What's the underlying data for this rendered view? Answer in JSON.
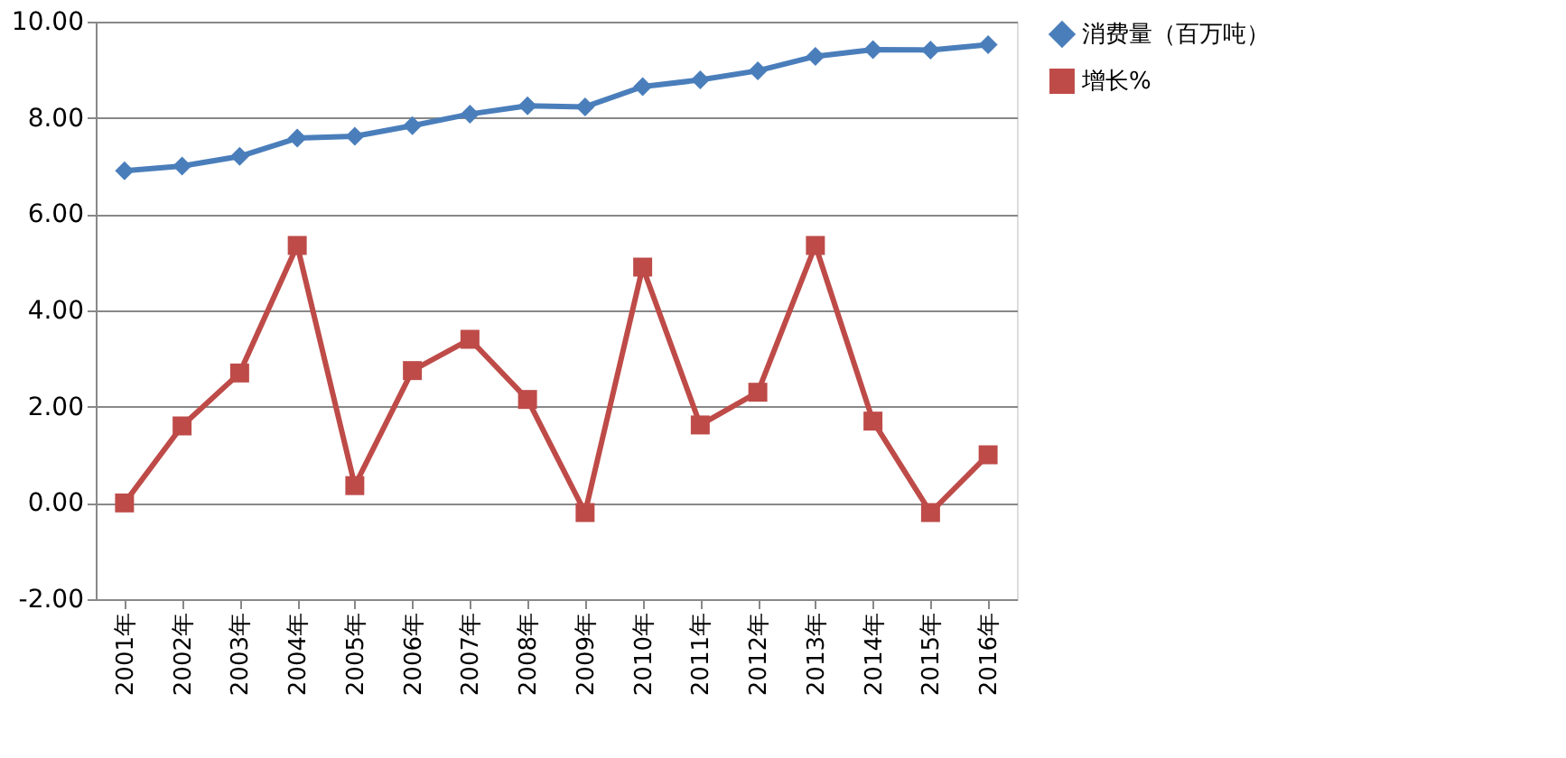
{
  "chart_data": {
    "type": "line",
    "categories": [
      "2001年",
      "2002年",
      "2003年",
      "2004年",
      "2005年",
      "2006年",
      "2007年",
      "2008年",
      "2009年",
      "2010年",
      "2011年",
      "2012年",
      "2013年",
      "2014年",
      "2015年",
      "2016年"
    ],
    "series": [
      {
        "name": "消费量（百万吨）",
        "color": "#4a7ebb",
        "marker": "diamond",
        "values": [
          6.9,
          7.0,
          7.2,
          7.58,
          7.62,
          7.84,
          8.08,
          8.25,
          8.23,
          8.65,
          8.79,
          8.98,
          9.28,
          9.42,
          9.41,
          9.52
        ]
      },
      {
        "name": "增长%",
        "color": "#be4b48",
        "marker": "square",
        "values": [
          0.0,
          1.6,
          2.7,
          5.35,
          0.36,
          2.75,
          3.4,
          2.15,
          -0.2,
          4.9,
          1.62,
          2.3,
          5.35,
          1.7,
          -0.2,
          1.0
        ]
      }
    ],
    "ylim": [
      -2,
      10
    ],
    "yticks": [
      {
        "value": -2,
        "label": "-2.00"
      },
      {
        "value": 0,
        "label": "0.00"
      },
      {
        "value": 2,
        "label": "2.00"
      },
      {
        "value": 4,
        "label": "4.00"
      },
      {
        "value": 6,
        "label": "6.00"
      },
      {
        "value": 8,
        "label": "8.00"
      },
      {
        "value": 10,
        "label": "10.00"
      }
    ],
    "grid": "y",
    "legend": "right"
  }
}
